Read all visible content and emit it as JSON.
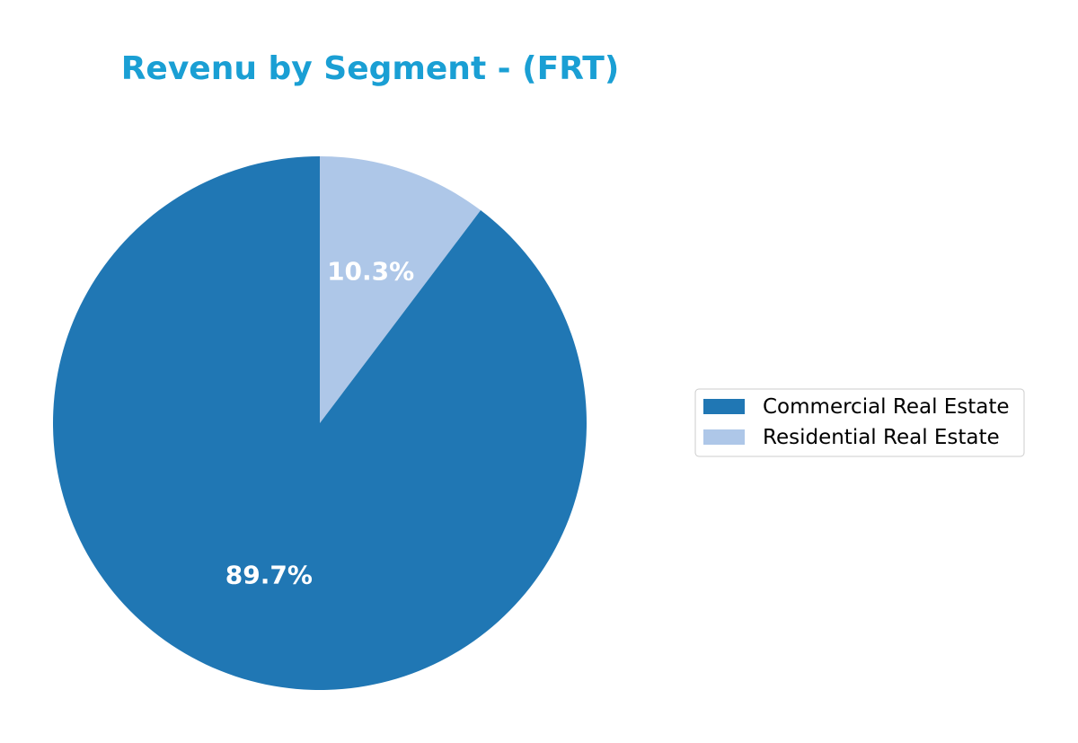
{
  "chart_data": {
    "type": "pie",
    "title": "Revenu by Segment - (FRT)",
    "title_color": "#1a9fd4",
    "categories": [
      "Commercial Real Estate",
      "Residential Real Estate"
    ],
    "values": [
      89.7,
      10.3
    ],
    "value_labels": [
      "89.7%",
      "10.3%"
    ],
    "colors": [
      "#2077b4",
      "#aec7e8"
    ],
    "start": "top (12 o'clock), clockwise, first slice Residential Real Estate",
    "legend_placement": "right"
  }
}
